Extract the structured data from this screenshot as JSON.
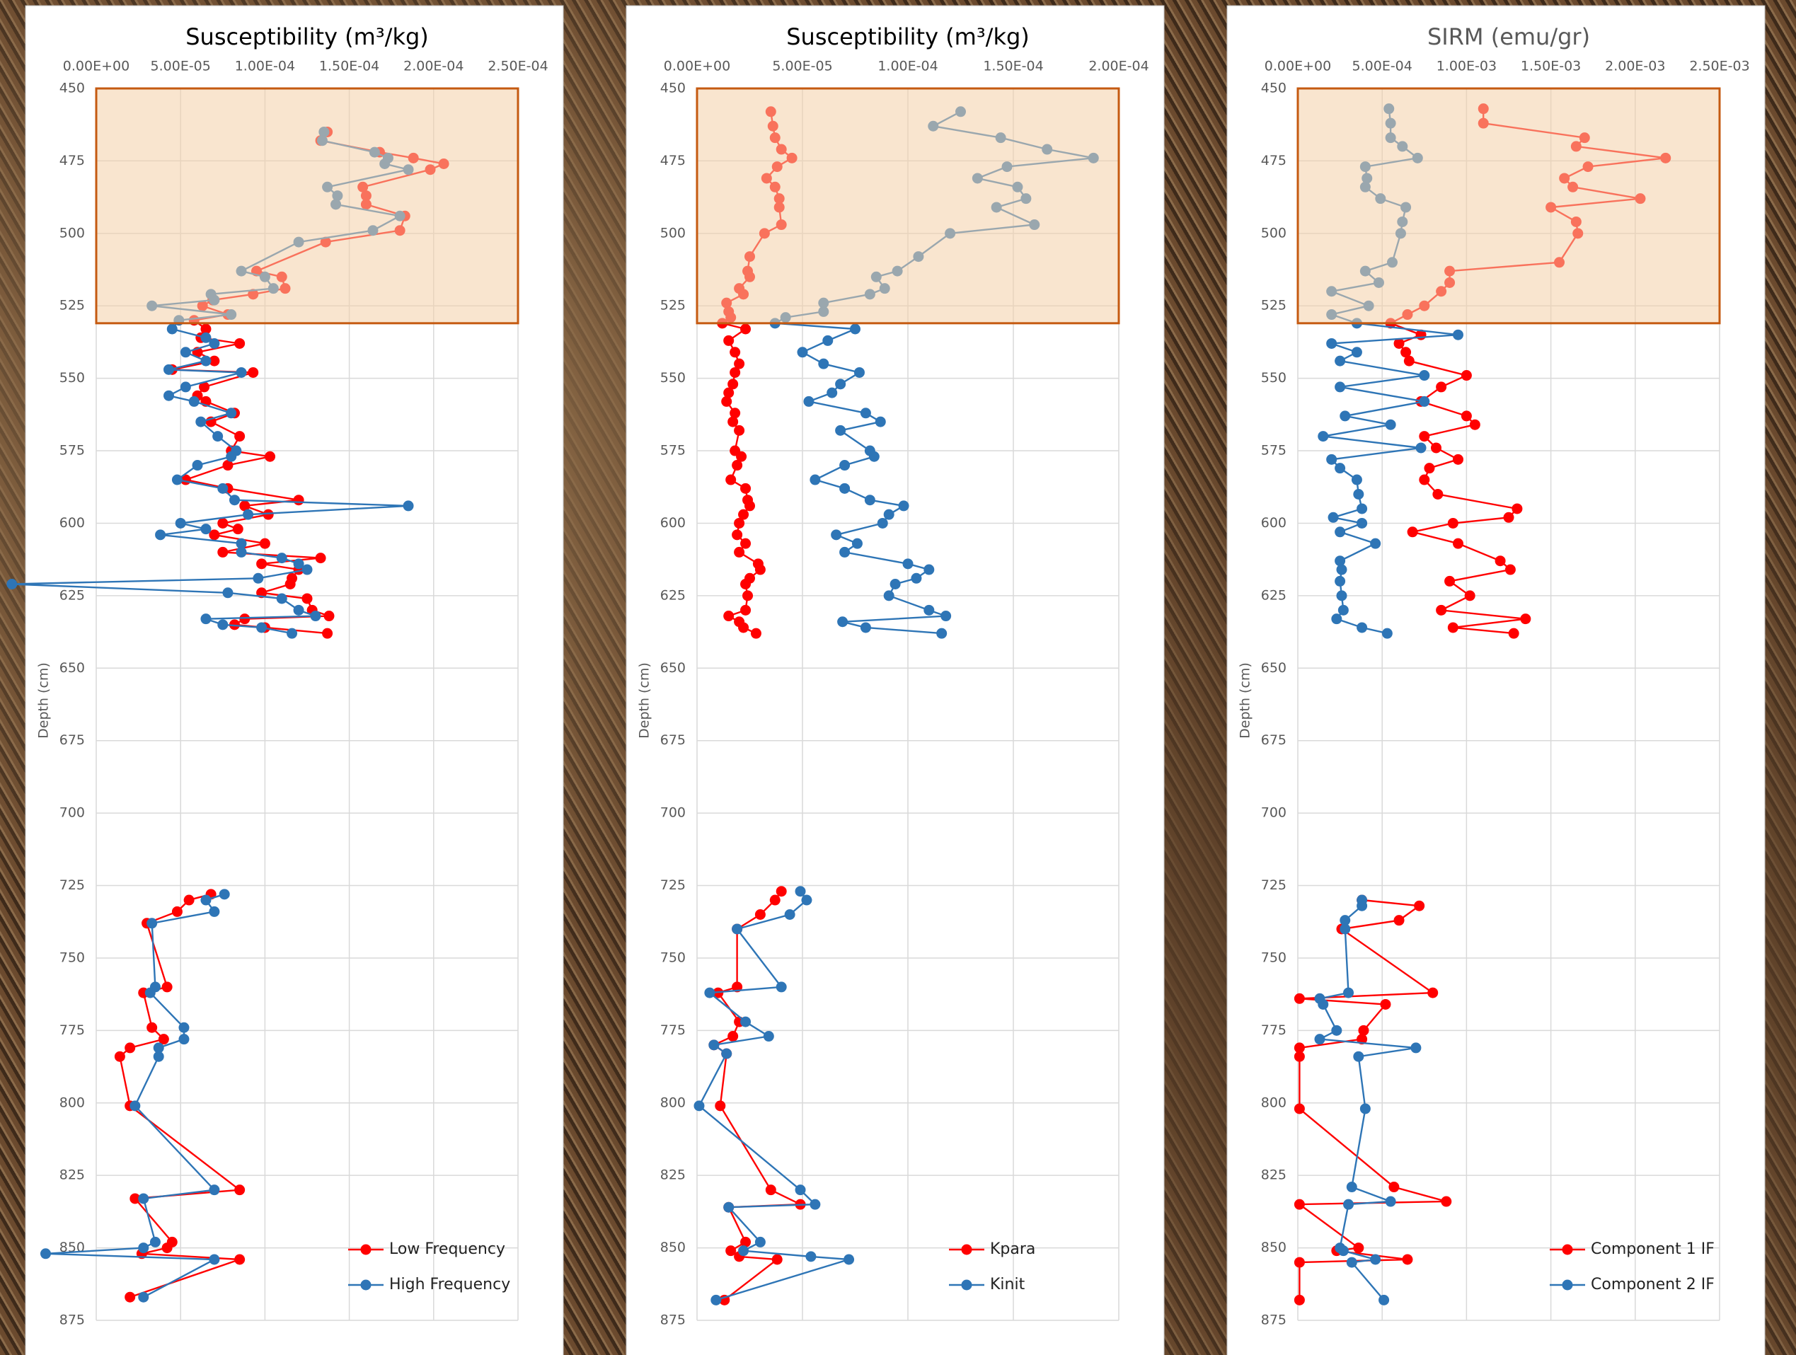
{
  "chart_data": [
    {
      "type": "line",
      "title": "Susceptibility (m³/kg)",
      "title_color": "#000000",
      "y_label": "Depth (cm)",
      "xlim": [
        0,
        0.00025
      ],
      "xticks": [
        {
          "value": 0,
          "label": "0.00E+00"
        },
        {
          "value": 5e-05,
          "label": "5.00E-05"
        },
        {
          "value": 0.0001,
          "label": "1.00E-04"
        },
        {
          "value": 0.00015,
          "label": "1.50E-04"
        },
        {
          "value": 0.0002,
          "label": "2.00E-04"
        },
        {
          "value": 0.00025,
          "label": "2.50E-04"
        }
      ],
      "ylim": [
        450,
        875
      ],
      "y_reversed": true,
      "yticks": [
        450,
        475,
        500,
        525,
        550,
        575,
        600,
        625,
        650,
        675,
        700,
        725,
        750,
        775,
        800,
        825,
        850,
        875
      ],
      "grid": true,
      "legend": "lower right",
      "highlight": {
        "ylim": [
          450,
          531
        ],
        "color": "#f4cfa8",
        "border": "#c55a11"
      },
      "depth": [
        465,
        468,
        472,
        474,
        476,
        478,
        484,
        487,
        490,
        494,
        499,
        503,
        513,
        515,
        519,
        521,
        523,
        525,
        528,
        530,
        533,
        536,
        538,
        541,
        544,
        547,
        548,
        553,
        556,
        558,
        562,
        565,
        570,
        575,
        577,
        580,
        585,
        588,
        592,
        594,
        597,
        600,
        602,
        604,
        607,
        610,
        612,
        614,
        616,
        619,
        621,
        624,
        626,
        630,
        632,
        633,
        635,
        636,
        638,
        null,
        728,
        730,
        734,
        738,
        760,
        762,
        774,
        778,
        781,
        784,
        801,
        830,
        833,
        848,
        850,
        852,
        854,
        867
      ],
      "series": [
        {
          "name": "Low Frequency",
          "color": "#ff0000",
          "values": [
            0.000137,
            0.000133,
            0.000168,
            0.000188,
            0.000206,
            0.000198,
            0.000158,
            0.00016,
            0.00016,
            0.000183,
            0.00018,
            0.000136,
            9.5e-05,
            0.00011,
            0.000112,
            9.3e-05,
            6.9e-05,
            6.3e-05,
            7.8e-05,
            5.8e-05,
            6.5e-05,
            6.2e-05,
            8.5e-05,
            6e-05,
            7e-05,
            4.5e-05,
            9.3e-05,
            6.4e-05,
            6e-05,
            6.5e-05,
            8.2e-05,
            6.8e-05,
            8.5e-05,
            8e-05,
            0.000103,
            7.8e-05,
            5.3e-05,
            7.8e-05,
            0.00012,
            8.8e-05,
            0.000102,
            7.5e-05,
            8.4e-05,
            7e-05,
            0.0001,
            7.5e-05,
            0.000133,
            9.8e-05,
            0.00012,
            0.000116,
            0.000115,
            9.8e-05,
            0.000125,
            0.000128,
            0.000138,
            8.8e-05,
            8.2e-05,
            0.0001,
            0.000137,
            null,
            6.8e-05,
            5.5e-05,
            4.8e-05,
            3e-05,
            4.2e-05,
            2.8e-05,
            3.3e-05,
            4e-05,
            2e-05,
            1.4e-05,
            2e-05,
            8.5e-05,
            2.3e-05,
            4.5e-05,
            4.2e-05,
            2.7e-05,
            8.5e-05,
            2e-05
          ]
        },
        {
          "name": "High Frequency",
          "color": "#2e75b6",
          "values": [
            0.000135,
            0.000134,
            0.000165,
            0.000173,
            0.000171,
            0.000185,
            0.000137,
            0.000143,
            0.000142,
            0.00018,
            0.000164,
            0.00012,
            8.6e-05,
            0.0001,
            0.000105,
            6.8e-05,
            7e-05,
            3.3e-05,
            8e-05,
            4.9e-05,
            4.5e-05,
            6.5e-05,
            7e-05,
            5.3e-05,
            6.5e-05,
            4.3e-05,
            8.6e-05,
            5.3e-05,
            4.3e-05,
            5.8e-05,
            8e-05,
            6.2e-05,
            7.2e-05,
            8.3e-05,
            8e-05,
            6e-05,
            4.8e-05,
            7.5e-05,
            8.2e-05,
            0.000185,
            9e-05,
            5e-05,
            6.5e-05,
            3.8e-05,
            8.6e-05,
            8.6e-05,
            0.00011,
            0.00012,
            0.000125,
            9.6e-05,
            -5e-05,
            7.8e-05,
            0.00011,
            0.00012,
            0.00013,
            6.5e-05,
            7.5e-05,
            9.8e-05,
            0.000116,
            null,
            7.6e-05,
            6.5e-05,
            7e-05,
            3.3e-05,
            3.5e-05,
            3.2e-05,
            5.2e-05,
            5.2e-05,
            3.7e-05,
            3.7e-05,
            2.3e-05,
            7e-05,
            2.8e-05,
            3.5e-05,
            2.8e-05,
            -3e-05,
            7e-05,
            2.8e-05
          ]
        }
      ]
    },
    {
      "type": "line",
      "title": "Susceptibility (m³/kg)",
      "title_color": "#000000",
      "y_label": "Depth (cm)",
      "xlim": [
        0,
        0.0002
      ],
      "xticks": [
        {
          "value": 0,
          "label": "0.00E+00"
        },
        {
          "value": 5e-05,
          "label": "5.00E-05"
        },
        {
          "value": 0.0001,
          "label": "1.00E-04"
        },
        {
          "value": 0.00015,
          "label": "1.50E-04"
        },
        {
          "value": 0.0002,
          "label": "2.00E-04"
        }
      ],
      "ylim": [
        450,
        875
      ],
      "y_reversed": true,
      "yticks": [
        450,
        475,
        500,
        525,
        550,
        575,
        600,
        625,
        650,
        675,
        700,
        725,
        750,
        775,
        800,
        825,
        850,
        875
      ],
      "grid": true,
      "legend": "lower right",
      "highlight": {
        "ylim": [
          450,
          531
        ],
        "color": "#f4cfa8",
        "border": "#c55a11"
      },
      "depth": [
        458,
        463,
        467,
        471,
        474,
        477,
        481,
        484,
        488,
        491,
        497,
        500,
        508,
        513,
        515,
        519,
        521,
        524,
        527,
        529,
        531,
        533,
        537,
        541,
        545,
        548,
        552,
        555,
        558,
        562,
        565,
        568,
        575,
        577,
        580,
        585,
        588,
        592,
        594,
        597,
        600,
        604,
        607,
        610,
        614,
        616,
        619,
        621,
        625,
        630,
        632,
        634,
        636,
        638,
        null,
        727,
        730,
        735,
        740,
        760,
        762,
        772,
        777,
        780,
        783,
        801,
        830,
        835,
        836,
        848,
        851,
        853,
        854,
        868
      ],
      "series": [
        {
          "name": "Kpara",
          "color": "#ff0000",
          "values": [
            3.5e-05,
            3.6e-05,
            3.7e-05,
            4e-05,
            4.5e-05,
            3.8e-05,
            3.3e-05,
            3.7e-05,
            3.9e-05,
            3.9e-05,
            4e-05,
            3.2e-05,
            2.5e-05,
            2.4e-05,
            2.5e-05,
            2e-05,
            2.2e-05,
            1.4e-05,
            1.5e-05,
            1.6e-05,
            1.2e-05,
            2.3e-05,
            1.5e-05,
            1.8e-05,
            2e-05,
            1.8e-05,
            1.7e-05,
            1.5e-05,
            1.4e-05,
            1.8e-05,
            1.7e-05,
            2e-05,
            1.8e-05,
            2.1e-05,
            1.9e-05,
            1.6e-05,
            2.3e-05,
            2.4e-05,
            2.5e-05,
            2.2e-05,
            2e-05,
            1.9e-05,
            2.3e-05,
            2e-05,
            2.9e-05,
            3e-05,
            2.5e-05,
            2.3e-05,
            2.4e-05,
            2.3e-05,
            1.5e-05,
            2e-05,
            2.2e-05,
            2.8e-05,
            null,
            4e-05,
            3.7e-05,
            3e-05,
            1.9e-05,
            1.9e-05,
            1e-05,
            2e-05,
            1.7e-05,
            8e-06,
            1.4e-05,
            1.1e-05,
            3.5e-05,
            4.9e-05,
            1.5e-05,
            2.3e-05,
            1.6e-05,
            2e-05,
            3.8e-05,
            1.3e-05
          ]
        },
        {
          "name": "Kinit",
          "color": "#2e75b6",
          "values": [
            0.000125,
            0.000112,
            0.000144,
            0.000166,
            0.000188,
            0.000147,
            0.000133,
            0.000152,
            0.000156,
            0.000142,
            0.00016,
            0.00012,
            0.000105,
            9.5e-05,
            8.5e-05,
            8.9e-05,
            8.2e-05,
            6e-05,
            6e-05,
            4.2e-05,
            3.7e-05,
            7.5e-05,
            6.2e-05,
            5e-05,
            6e-05,
            7.7e-05,
            6.8e-05,
            6.4e-05,
            5.3e-05,
            8e-05,
            8.7e-05,
            6.8e-05,
            8.2e-05,
            8.4e-05,
            7e-05,
            5.6e-05,
            7e-05,
            8.2e-05,
            9.8e-05,
            9.1e-05,
            8.8e-05,
            6.6e-05,
            7.6e-05,
            7e-05,
            0.0001,
            0.00011,
            0.000104,
            9.4e-05,
            9.1e-05,
            0.00011,
            0.000118,
            6.9e-05,
            8e-05,
            0.000116,
            null,
            4.9e-05,
            5.2e-05,
            4.4e-05,
            1.9e-05,
            4e-05,
            6e-06,
            2.3e-05,
            3.4e-05,
            8e-06,
            1.4e-05,
            1e-06,
            4.9e-05,
            5.6e-05,
            1.5e-05,
            3e-05,
            2.2e-05,
            5.4e-05,
            7.2e-05,
            9e-06
          ]
        }
      ]
    },
    {
      "type": "line",
      "title": "SIRM (emu/gr)",
      "title_color": "#595959",
      "y_label": "Depth (cm)",
      "xlim": [
        0,
        0.0025
      ],
      "xticks": [
        {
          "value": 0,
          "label": "0.00E+00"
        },
        {
          "value": 0.0005,
          "label": "5.00E-04"
        },
        {
          "value": 0.001,
          "label": "1.00E-03"
        },
        {
          "value": 0.0015,
          "label": "1.50E-03"
        },
        {
          "value": 0.002,
          "label": "2.00E-03"
        },
        {
          "value": 0.0025,
          "label": "2.50E-03"
        }
      ],
      "ylim": [
        450,
        875
      ],
      "y_reversed": true,
      "yticks": [
        450,
        475,
        500,
        525,
        550,
        575,
        600,
        625,
        650,
        675,
        700,
        725,
        750,
        775,
        800,
        825,
        850,
        875
      ],
      "grid": true,
      "legend": "lower right",
      "highlight": {
        "ylim": [
          450,
          531
        ],
        "color": "#f4cfa8",
        "border": "#c55a11"
      },
      "depth": [
        457,
        462,
        467,
        470,
        474,
        477,
        481,
        484,
        488,
        491,
        496,
        500,
        510,
        513,
        517,
        520,
        525,
        528,
        531,
        535,
        538,
        541,
        544,
        549,
        553,
        558,
        563,
        566,
        570,
        574,
        578,
        581,
        585,
        590,
        595,
        598,
        600,
        603,
        607,
        613,
        616,
        620,
        625,
        630,
        633,
        636,
        638,
        null,
        730,
        732,
        737,
        740,
        762,
        764,
        766,
        775,
        778,
        781,
        784,
        802,
        829,
        834,
        835,
        850,
        851,
        854,
        855,
        868
      ],
      "series": [
        {
          "name": "Component 1 IF",
          "color": "#ff0000",
          "values": [
            0.0011,
            0.0011,
            0.0017,
            0.00165,
            0.00218,
            0.00172,
            0.00158,
            0.00163,
            0.00203,
            0.0015,
            0.00165,
            0.00166,
            0.00155,
            0.0009,
            0.0009,
            0.00085,
            0.00075,
            0.00065,
            0.00055,
            0.00073,
            0.0006,
            0.00064,
            0.00066,
            0.001,
            0.00085,
            0.00073,
            0.001,
            0.00105,
            0.00075,
            0.00082,
            0.00095,
            0.00078,
            0.00075,
            0.00083,
            0.0013,
            0.00125,
            0.00092,
            0.00068,
            0.00095,
            0.0012,
            0.00126,
            0.0009,
            0.00102,
            0.00085,
            0.00135,
            0.00092,
            0.00128,
            null,
            0.00038,
            0.00072,
            0.0006,
            0.00026,
            0.0008,
            1e-05,
            0.00052,
            0.00039,
            0.00038,
            1e-05,
            1e-05,
            1e-05,
            0.00057,
            0.00088,
            1e-05,
            0.00036,
            0.00023,
            0.00065,
            1e-05,
            1e-05
          ]
        },
        {
          "name": "Component 2 IF",
          "color": "#2e75b6",
          "values": [
            0.00054,
            0.00055,
            0.00055,
            0.00062,
            0.00071,
            0.0004,
            0.00041,
            0.0004,
            0.00049,
            0.00064,
            0.00062,
            0.00061,
            0.00056,
            0.0004,
            0.00048,
            0.0002,
            0.00042,
            0.0002,
            0.00035,
            0.00095,
            0.0002,
            0.00035,
            0.00025,
            0.00075,
            0.00025,
            0.00075,
            0.00028,
            0.00055,
            0.00015,
            0.00073,
            0.0002,
            0.00025,
            0.00035,
            0.00036,
            0.00038,
            0.00021,
            0.00038,
            0.00025,
            0.00046,
            0.00025,
            0.00026,
            0.00025,
            0.00026,
            0.00027,
            0.00023,
            0.00038,
            0.00053,
            null,
            0.00038,
            0.00038,
            0.00028,
            0.00028,
            0.0003,
            0.00013,
            0.00015,
            0.00023,
            0.00013,
            0.0007,
            0.00036,
            0.0004,
            0.00032,
            0.00055,
            0.0003,
            0.00025,
            0.00027,
            0.00046,
            0.00032,
            0.00051
          ]
        }
      ]
    }
  ]
}
